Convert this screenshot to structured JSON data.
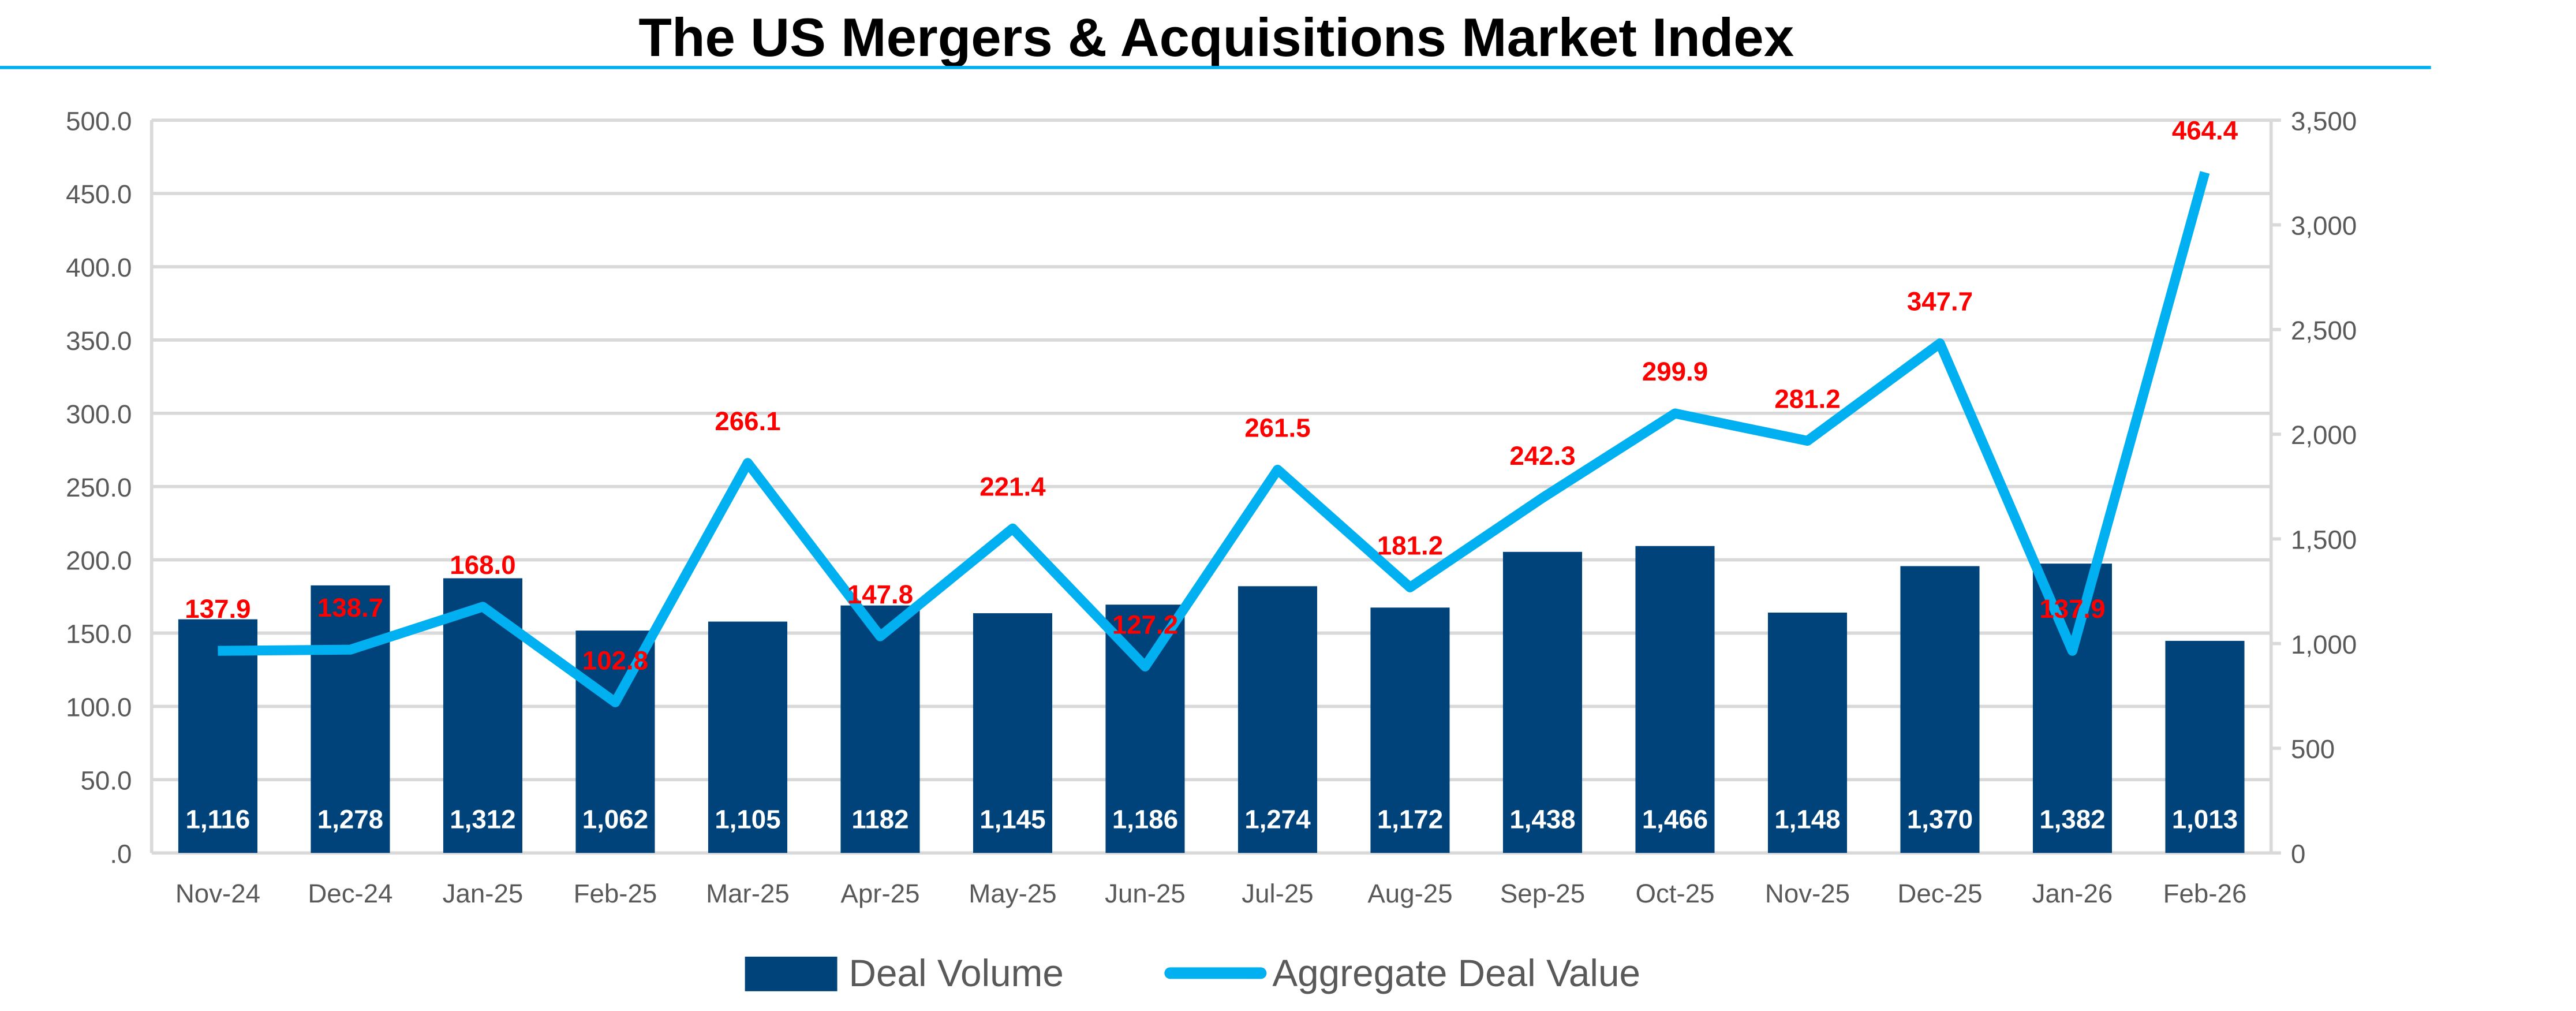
{
  "chart_data": {
    "type": "bar+line",
    "title": "The US Mergers & Acquisitions Market Index",
    "categories": [
      "Nov-24",
      "Dec-24",
      "Jan-25",
      "Feb-25",
      "Mar-25",
      "Apr-25",
      "May-25",
      "Jun-25",
      "Jul-25",
      "Aug-25",
      "Sep-25",
      "Oct-25",
      "Nov-25",
      "Dec-25",
      "Jan-26",
      "Feb-26"
    ],
    "series": [
      {
        "name": "Deal Volume",
        "type": "bar",
        "axis": "right",
        "color": "#00427a",
        "values": [
          1116,
          1278,
          1312,
          1062,
          1105,
          1182,
          1145,
          1186,
          1274,
          1172,
          1438,
          1466,
          1148,
          1370,
          1382,
          1013
        ],
        "labels": [
          "1,116",
          "1,278",
          "1,312",
          "1,062",
          "1,105",
          "1182",
          "1,145",
          "1,186",
          "1,274",
          "1,172",
          "1,438",
          "1,466",
          "1,148",
          "1,370",
          "1,382",
          "1,013"
        ]
      },
      {
        "name": "Aggregate Deal Value",
        "type": "line",
        "axis": "left",
        "color": "#00b0f0",
        "values": [
          137.9,
          138.7,
          168.0,
          102.8,
          266.1,
          147.8,
          221.4,
          127.2,
          261.5,
          181.2,
          242.3,
          299.9,
          281.2,
          347.7,
          137.9,
          464.4
        ],
        "labels": [
          "137.9",
          "138.7",
          "168.0",
          "102.8",
          "266.1",
          "147.8",
          "221.4",
          "127.2",
          "261.5",
          "181.2",
          "242.3",
          "299.9",
          "281.2",
          "347.7",
          "137.9",
          "464.4"
        ]
      }
    ],
    "left_axis": {
      "range": [
        0,
        500
      ],
      "ticks": [
        ".0",
        "50.0",
        "100.0",
        "150.0",
        "200.0",
        "250.0",
        "300.0",
        "350.0",
        "400.0",
        "450.0",
        "500.0"
      ]
    },
    "right_axis": {
      "range": [
        0,
        3500
      ],
      "ticks": [
        "0",
        "500",
        "1,000",
        "1,500",
        "2,000",
        "2,500",
        "3,000",
        "3,500"
      ]
    },
    "grid": true,
    "legend": "bottom",
    "label_color": "#ff0000",
    "title_rule_color": "#00b0f0"
  }
}
